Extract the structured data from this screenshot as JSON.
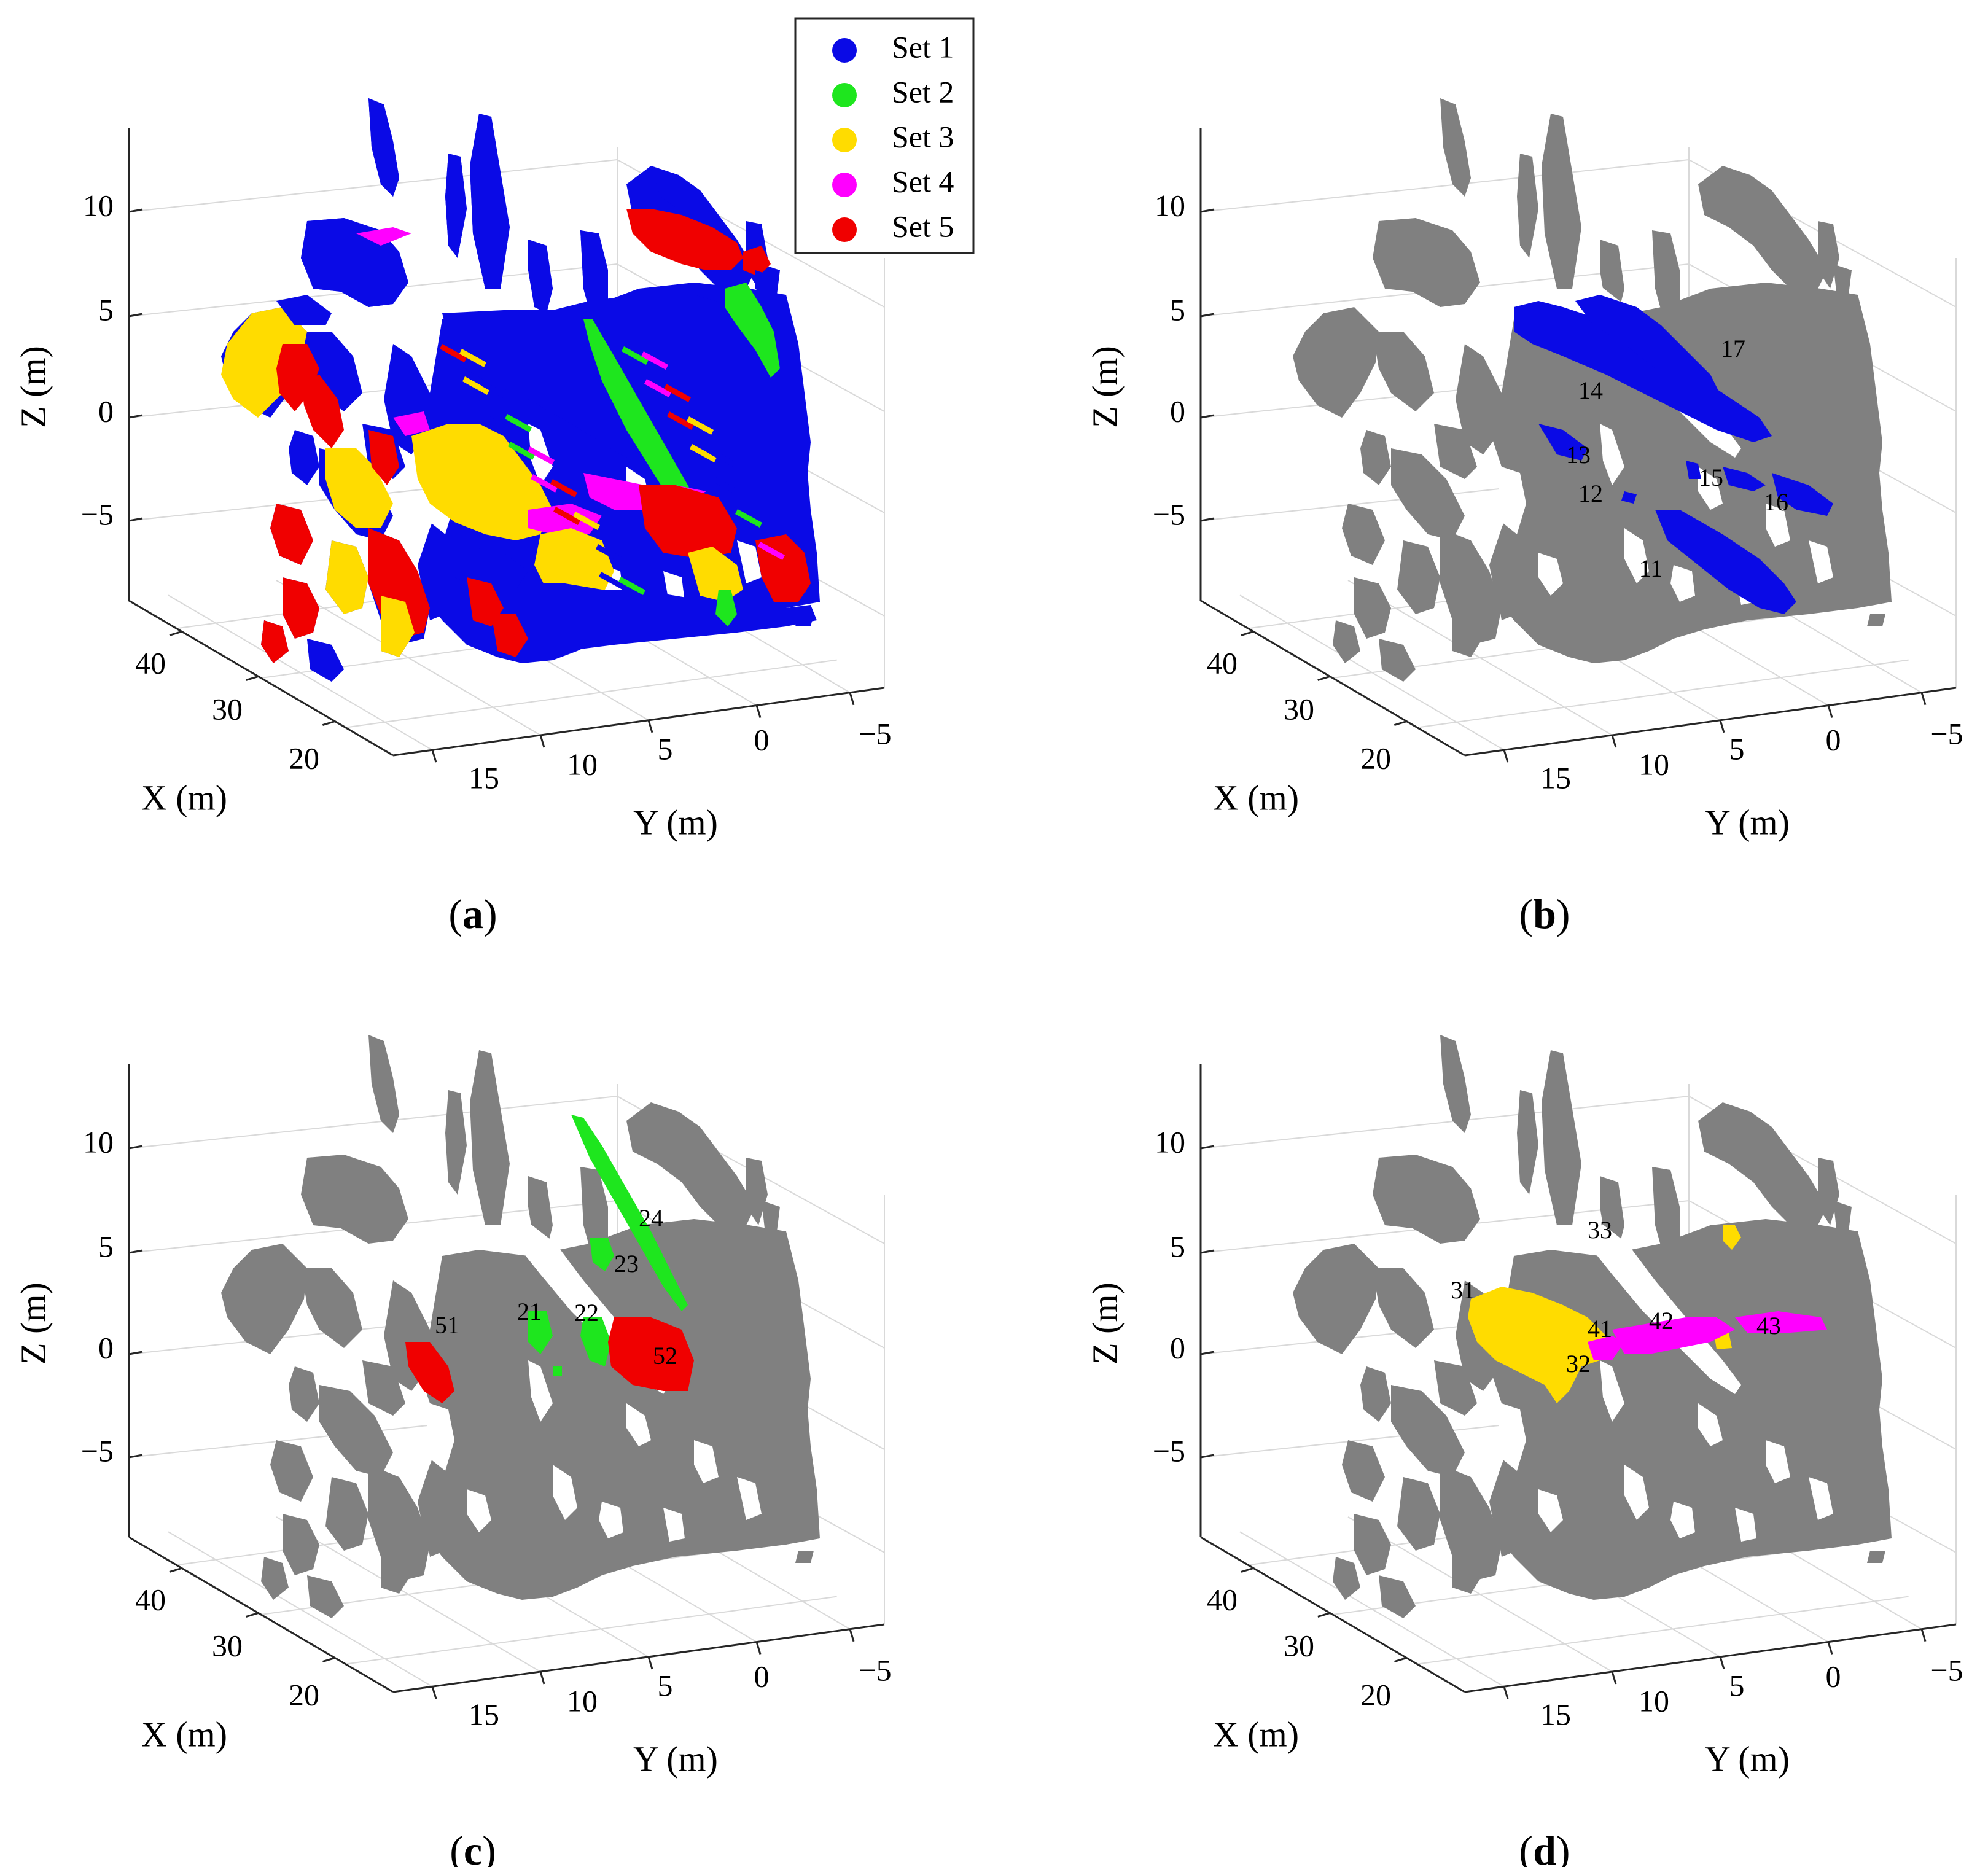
{
  "chart_data": [
    {
      "type": "scatter",
      "panel": "a",
      "caption_letter": "a",
      "axes": {
        "x": {
          "label": "X (m)",
          "ticks": [
            "20",
            "30",
            "40"
          ]
        },
        "y": {
          "label": "Y (m)",
          "ticks": [
            "15",
            "10",
            "5",
            "0",
            "−5"
          ]
        },
        "z": {
          "label": "Z (m)",
          "ticks": [
            "10",
            "5",
            "0",
            "−5"
          ]
        }
      },
      "grid": true,
      "legend": {
        "placement": "top-right",
        "entries": [
          {
            "label": "Set 1",
            "color": "#0a0ae6"
          },
          {
            "label": "Set 2",
            "color": "#1ee61e"
          },
          {
            "label": "Set 3",
            "color": "#ffdc00"
          },
          {
            "label": "Set 4",
            "color": "#ff00ff"
          },
          {
            "label": "Set 5",
            "color": "#f00000"
          }
        ]
      },
      "labels": []
    },
    {
      "type": "scatter",
      "panel": "b",
      "caption_letter": "b",
      "axes": {
        "x": {
          "label": "X (m)",
          "ticks": [
            "20",
            "30",
            "40"
          ]
        },
        "y": {
          "label": "Y (m)",
          "ticks": [
            "15",
            "10",
            "5",
            "0",
            "−5"
          ]
        },
        "z": {
          "label": "Z (m)",
          "ticks": [
            "10",
            "5",
            "0",
            "−5"
          ]
        }
      },
      "grid": true,
      "labels": [
        "11",
        "12",
        "13",
        "14",
        "15",
        "16",
        "17"
      ]
    },
    {
      "type": "scatter",
      "panel": "c",
      "caption_letter": "c",
      "axes": {
        "x": {
          "label": "X (m)",
          "ticks": [
            "20",
            "30",
            "40"
          ]
        },
        "y": {
          "label": "Y (m)",
          "ticks": [
            "15",
            "10",
            "5",
            "0",
            "−5"
          ]
        },
        "z": {
          "label": "Z (m)",
          "ticks": [
            "10",
            "5",
            "0",
            "−5"
          ]
        }
      },
      "grid": true,
      "labels": [
        "21",
        "22",
        "23",
        "24",
        "51",
        "52"
      ]
    },
    {
      "type": "scatter",
      "panel": "d",
      "caption_letter": "d",
      "axes": {
        "x": {
          "label": "X (m)",
          "ticks": [
            "20",
            "30",
            "40"
          ]
        },
        "y": {
          "label": "Y (m)",
          "ticks": [
            "15",
            "10",
            "5",
            "0",
            "−5"
          ]
        },
        "z": {
          "label": "Z (m)",
          "ticks": [
            "10",
            "5",
            "0",
            "−5"
          ]
        }
      },
      "grid": true,
      "labels": [
        "31",
        "32",
        "33",
        "41",
        "42",
        "43"
      ]
    }
  ],
  "colors": {
    "set1": "#0a0ae6",
    "set2": "#1ee61e",
    "set3": "#ffdc00",
    "set4": "#ff00ff",
    "set5": "#f00000",
    "gray": "#808080"
  }
}
